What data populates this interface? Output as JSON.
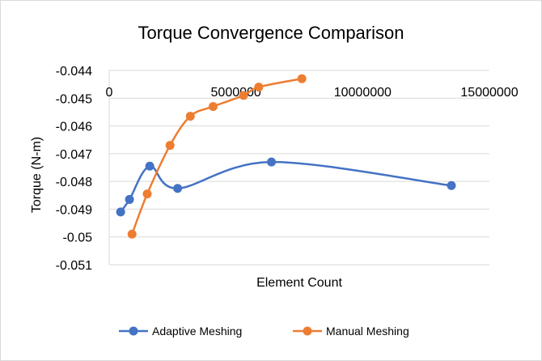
{
  "chart_data": {
    "type": "scatter",
    "title": "Torque Convergence Comparison",
    "xlabel": "Element Count",
    "ylabel": "Torque (N-m)",
    "xlim": [
      0,
      15000000
    ],
    "ylim": [
      -0.051,
      -0.044
    ],
    "x_ticks": [
      0,
      5000000,
      10000000,
      15000000
    ],
    "x_tick_labels": [
      "0",
      "5000000",
      "10000000",
      "15000000"
    ],
    "y_ticks": [
      -0.044,
      -0.045,
      -0.046,
      -0.047,
      -0.048,
      -0.049,
      -0.05,
      -0.051
    ],
    "y_tick_labels": [
      "-0.044",
      "-0.045",
      "-0.046",
      "-0.047",
      "-0.048",
      "-0.049",
      "-0.05",
      "-0.051"
    ],
    "grid": "horizontal",
    "smooth_lines": true,
    "legend_position": "bottom",
    "series": [
      {
        "name": "Adaptive Meshing",
        "color": "#4472c4",
        "x": [
          450000,
          800000,
          1600000,
          2700000,
          6400000,
          13500000
        ],
        "y": [
          -0.0491,
          -0.04865,
          -0.04745,
          -0.04825,
          -0.0473,
          -0.04815
        ]
      },
      {
        "name": "Manual Meshing",
        "color": "#ed7d31",
        "x": [
          900000,
          1500000,
          2400000,
          3200000,
          4100000,
          5300000,
          5900000,
          7600000
        ],
        "y": [
          -0.0499,
          -0.04845,
          -0.0467,
          -0.04565,
          -0.0453,
          -0.0449,
          -0.0446,
          -0.0443
        ]
      }
    ]
  }
}
